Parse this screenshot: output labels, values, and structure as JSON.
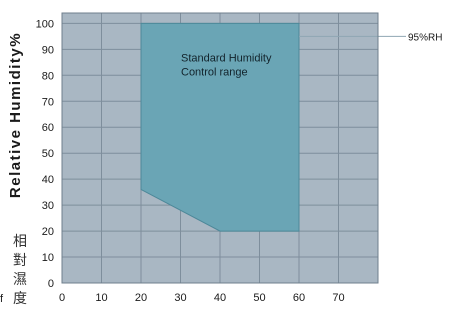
{
  "chart_data": {
    "type": "area",
    "title": "",
    "xlabel": "",
    "ylabel": "Relative Humidity%",
    "ylabel_cn": [
      "相",
      "對",
      "濕",
      "度"
    ],
    "left_fragment": "f",
    "x_ticks": [
      0,
      10,
      20,
      30,
      40,
      50,
      60,
      70
    ],
    "y_ticks": [
      0,
      10,
      20,
      30,
      40,
      50,
      60,
      70,
      80,
      90,
      100
    ],
    "xlim": [
      0,
      80
    ],
    "ylim": [
      0,
      104
    ],
    "grid": true,
    "region": {
      "label_lines": [
        "Standard Humidity",
        "Control range"
      ],
      "points": [
        [
          20,
          100
        ],
        [
          60,
          100
        ],
        [
          60,
          20
        ],
        [
          40,
          20
        ],
        [
          20,
          36
        ]
      ]
    },
    "annotation": {
      "text": "95%RH",
      "y": 95
    },
    "colors": {
      "background": "#a9b7c3",
      "region": "#6aa5b5",
      "region_edge": "#4d8899",
      "grid": "#7e8e9c",
      "frame": "#6f7f8c"
    }
  }
}
